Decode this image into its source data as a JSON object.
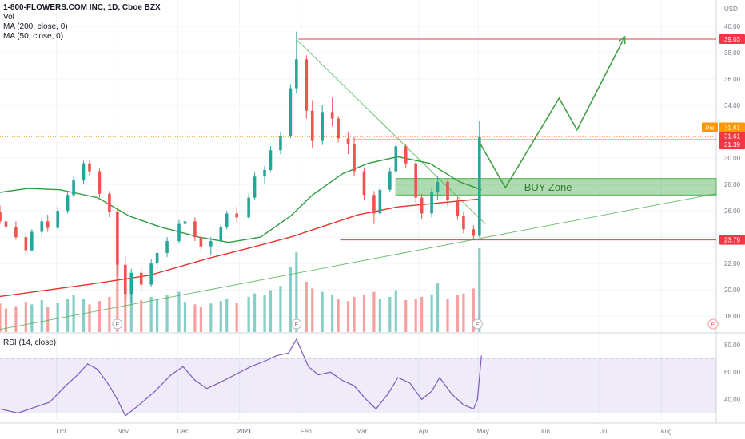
{
  "header": {
    "symbol_line": "1-800-FLOWERS.COM INC, 1D, Cboe BZX",
    "indicators": [
      "Vol",
      "MA (200, close, 0)",
      "MA (50, close, 0)"
    ],
    "currency": "USD"
  },
  "rsi_panel": {
    "title": "RSI (14, close)"
  },
  "chart_data": {
    "type": "candlestick",
    "title": "1-800-FLOWERS.COM INC, 1D, Cboe BZX",
    "x_ticks": [
      "Oct",
      "Nov",
      "Dec",
      "2021",
      "Feb",
      "Mar",
      "Apr",
      "May",
      "Jun",
      "Jul",
      "Aug"
    ],
    "y_ticks": [
      "40.00",
      "38.00",
      "36.00",
      "34.00",
      "32.00",
      "30.00",
      "28.00",
      "26.00",
      "24.00",
      "22.00",
      "20.00",
      "18.00"
    ],
    "ylim": [
      16.8,
      42.0
    ],
    "rsi_ticks": [
      "80.00",
      "60.00",
      "40.00"
    ],
    "rsi_ylim": [
      25,
      87
    ],
    "price_labels": [
      {
        "text": "39.03",
        "value": 39.03,
        "color": "#f23645"
      },
      {
        "text": "31.61",
        "value": 31.61,
        "color": "#f23645"
      },
      {
        "text": "31.39",
        "value": 31.39,
        "color": "#f23645"
      },
      {
        "text": "23.79",
        "value": 23.79,
        "color": "#f23645"
      }
    ],
    "pre_label": {
      "tag": "Pre",
      "text": "31.61",
      "value": 31.61,
      "color": "#ff9800"
    },
    "horizontal_lines": [
      {
        "value": 39.03,
        "start": "2021-01-29"
      },
      {
        "value": 31.39,
        "start": "2021-02-25"
      },
      {
        "value": 23.79,
        "start": "2021-02-19"
      }
    ],
    "buy_zone": {
      "label": "BUY Zone",
      "low": 27.2,
      "high": 28.45,
      "start": "2021-03-19",
      "end": "2021-08-27"
    },
    "projection_path": [
      {
        "date": "2021-04-30",
        "price": 31.2
      },
      {
        "date": "2021-05-13",
        "price": 27.75
      },
      {
        "date": "2021-06-09",
        "price": 34.55
      },
      {
        "date": "2021-06-18",
        "price": 32.15
      },
      {
        "date": "2021-07-12",
        "price": 39.2
      }
    ],
    "trendlines": [
      {
        "from": {
          "date": "2020-09-01",
          "price": 17.0
        },
        "to": {
          "date": "2021-08-27",
          "price": 27.3
        }
      },
      {
        "from": {
          "date": "2021-01-28",
          "price": 39.0
        },
        "to": {
          "date": "2021-05-03",
          "price": 25.0
        }
      }
    ],
    "earnings_markers": [
      "2020-10-30",
      "2021-01-28",
      "2021-04-29",
      "2021-08-27"
    ],
    "earnings_glyph": "E",
    "series": [
      {
        "name": "MA (200, close, 0)",
        "color": "#e8322a",
        "points": [
          [
            "2020-09-01",
            19.5
          ],
          [
            "2020-10-15",
            20.4
          ],
          [
            "2020-11-15",
            21.1
          ],
          [
            "2020-12-15",
            22.4
          ],
          [
            "2021-01-05",
            23.2
          ],
          [
            "2021-01-25",
            24.0
          ],
          [
            "2021-02-10",
            24.8
          ],
          [
            "2021-02-28",
            25.7
          ],
          [
            "2021-03-20",
            26.3
          ],
          [
            "2021-04-10",
            26.6
          ],
          [
            "2021-04-30",
            26.9
          ]
        ]
      },
      {
        "name": "MA (50, close, 0)",
        "color": "#2e9e3e",
        "points": [
          [
            "2020-09-01",
            27.4
          ],
          [
            "2020-09-15",
            27.7
          ],
          [
            "2020-10-01",
            27.6
          ],
          [
            "2020-10-20",
            27.0
          ],
          [
            "2020-11-05",
            25.6
          ],
          [
            "2020-11-20",
            24.8
          ],
          [
            "2020-12-10",
            24.0
          ],
          [
            "2020-12-25",
            23.6
          ],
          [
            "2021-01-10",
            24.0
          ],
          [
            "2021-01-25",
            25.6
          ],
          [
            "2021-02-05",
            27.2
          ],
          [
            "2021-02-20",
            28.8
          ],
          [
            "2021-03-05",
            29.6
          ],
          [
            "2021-03-20",
            30.1
          ],
          [
            "2021-04-05",
            29.6
          ],
          [
            "2021-04-20",
            28.2
          ],
          [
            "2021-05-01",
            27.6
          ]
        ]
      }
    ],
    "candles": [
      [
        "2020-09-01",
        25.9,
        26.4,
        25.0,
        25.2
      ],
      [
        "2020-09-04",
        25.2,
        25.6,
        24.4,
        24.8
      ],
      [
        "2020-09-09",
        24.8,
        25.2,
        23.8,
        24.0
      ],
      [
        "2020-09-14",
        24.0,
        24.4,
        22.7,
        23.0
      ],
      [
        "2020-09-17",
        23.0,
        24.6,
        22.9,
        24.4
      ],
      [
        "2020-09-22",
        24.4,
        25.5,
        24.0,
        25.2
      ],
      [
        "2020-09-25",
        25.2,
        25.7,
        24.4,
        24.7
      ],
      [
        "2020-09-30",
        24.7,
        26.3,
        24.6,
        26.0
      ],
      [
        "2020-10-05",
        26.0,
        27.4,
        25.8,
        27.2
      ],
      [
        "2020-10-08",
        27.2,
        28.6,
        27.0,
        28.3
      ],
      [
        "2020-10-13",
        28.3,
        29.8,
        28.0,
        29.6
      ],
      [
        "2020-10-16",
        29.6,
        29.9,
        28.7,
        29.0
      ],
      [
        "2020-10-21",
        29.0,
        29.2,
        27.0,
        27.3
      ],
      [
        "2020-10-26",
        27.3,
        27.5,
        25.5,
        25.9
      ],
      [
        "2020-10-30",
        25.9,
        26.1,
        21.0,
        21.9
      ],
      [
        "2020-11-03",
        21.9,
        22.5,
        19.2,
        19.7
      ],
      [
        "2020-11-06",
        19.7,
        21.6,
        19.0,
        21.3
      ],
      [
        "2020-11-11",
        21.3,
        21.7,
        20.0,
        20.4
      ],
      [
        "2020-11-16",
        20.4,
        22.3,
        20.2,
        22.0
      ],
      [
        "2020-11-19",
        22.0,
        23.1,
        21.6,
        22.8
      ],
      [
        "2020-11-24",
        22.8,
        24.0,
        22.5,
        23.7
      ],
      [
        "2020-11-30",
        23.7,
        25.3,
        23.5,
        25.0
      ],
      [
        "2020-12-03",
        25.0,
        25.9,
        24.5,
        25.2
      ],
      [
        "2020-12-08",
        25.2,
        25.5,
        23.7,
        24.0
      ],
      [
        "2020-12-11",
        24.0,
        24.2,
        22.9,
        23.3
      ],
      [
        "2020-12-16",
        23.3,
        24.0,
        22.6,
        23.7
      ],
      [
        "2020-12-21",
        23.7,
        25.0,
        23.5,
        24.8
      ],
      [
        "2020-12-24",
        24.8,
        26.0,
        24.6,
        25.8
      ],
      [
        "2020-12-29",
        25.8,
        26.3,
        25.1,
        25.5
      ],
      [
        "2021-01-04",
        25.5,
        27.3,
        25.4,
        27.0
      ],
      [
        "2021-01-07",
        27.0,
        28.9,
        26.8,
        28.6
      ],
      [
        "2021-01-12",
        28.6,
        29.4,
        28.0,
        29.1
      ],
      [
        "2021-01-15",
        29.1,
        30.9,
        29.0,
        30.6
      ],
      [
        "2021-01-20",
        30.6,
        32.0,
        30.3,
        31.7
      ],
      [
        "2021-01-25",
        31.7,
        35.6,
        31.5,
        35.3
      ],
      [
        "2021-01-28",
        35.3,
        39.6,
        34.9,
        37.5
      ],
      [
        "2021-02-02",
        37.5,
        37.8,
        33.0,
        33.6
      ],
      [
        "2021-02-05",
        33.6,
        34.4,
        30.8,
        31.3
      ],
      [
        "2021-02-10",
        31.3,
        34.0,
        31.0,
        33.5
      ],
      [
        "2021-02-15",
        33.5,
        34.6,
        32.4,
        33.0
      ],
      [
        "2021-02-18",
        33.0,
        33.2,
        31.2,
        31.5
      ],
      [
        "2021-02-23",
        31.5,
        32.0,
        30.3,
        31.1
      ],
      [
        "2021-02-26",
        31.1,
        31.6,
        28.6,
        29.0
      ],
      [
        "2021-03-03",
        29.0,
        29.3,
        26.8,
        27.2
      ],
      [
        "2021-03-08",
        27.2,
        27.5,
        25.0,
        25.8
      ],
      [
        "2021-03-11",
        25.8,
        28.0,
        25.6,
        27.6
      ],
      [
        "2021-03-16",
        27.6,
        29.3,
        27.4,
        29.0
      ],
      [
        "2021-03-19",
        29.0,
        31.2,
        28.8,
        30.9
      ],
      [
        "2021-03-24",
        30.9,
        31.1,
        29.2,
        29.6
      ],
      [
        "2021-03-29",
        29.6,
        29.8,
        26.6,
        27.0
      ],
      [
        "2021-04-01",
        27.0,
        27.3,
        25.4,
        25.8
      ],
      [
        "2021-04-06",
        25.8,
        27.8,
        25.5,
        27.4
      ],
      [
        "2021-04-09",
        27.4,
        28.6,
        26.8,
        28.2
      ],
      [
        "2021-04-14",
        28.2,
        28.4,
        26.4,
        26.8
      ],
      [
        "2021-04-19",
        26.8,
        27.0,
        25.3,
        25.6
      ],
      [
        "2021-04-22",
        25.6,
        25.9,
        24.3,
        24.6
      ],
      [
        "2021-04-27",
        24.6,
        24.9,
        23.8,
        24.1
      ],
      [
        "2021-04-30",
        24.1,
        32.8,
        24.0,
        31.6
      ]
    ],
    "volume": [
      [
        "2020-09-01",
        0.34,
        "down"
      ],
      [
        "2020-09-04",
        0.28,
        "down"
      ],
      [
        "2020-09-09",
        0.31,
        "down"
      ],
      [
        "2020-09-14",
        0.36,
        "down"
      ],
      [
        "2020-09-17",
        0.33,
        "up"
      ],
      [
        "2020-09-22",
        0.38,
        "up"
      ],
      [
        "2020-09-25",
        0.3,
        "down"
      ],
      [
        "2020-09-30",
        0.35,
        "up"
      ],
      [
        "2020-10-05",
        0.4,
        "up"
      ],
      [
        "2020-10-08",
        0.44,
        "up"
      ],
      [
        "2020-10-13",
        0.39,
        "up"
      ],
      [
        "2020-10-16",
        0.33,
        "down"
      ],
      [
        "2020-10-21",
        0.37,
        "down"
      ],
      [
        "2020-10-26",
        0.42,
        "down"
      ],
      [
        "2020-10-30",
        0.8,
        "down"
      ],
      [
        "2020-11-03",
        0.55,
        "down"
      ],
      [
        "2020-11-06",
        0.5,
        "up"
      ],
      [
        "2020-11-11",
        0.38,
        "down"
      ],
      [
        "2020-11-16",
        0.42,
        "up"
      ],
      [
        "2020-11-19",
        0.4,
        "up"
      ],
      [
        "2020-11-24",
        0.44,
        "up"
      ],
      [
        "2020-11-30",
        0.48,
        "up"
      ],
      [
        "2020-12-03",
        0.36,
        "up"
      ],
      [
        "2020-12-08",
        0.33,
        "down"
      ],
      [
        "2020-12-11",
        0.3,
        "down"
      ],
      [
        "2020-12-16",
        0.34,
        "up"
      ],
      [
        "2020-12-21",
        0.37,
        "up"
      ],
      [
        "2020-12-24",
        0.4,
        "up"
      ],
      [
        "2020-12-29",
        0.35,
        "down"
      ],
      [
        "2021-01-04",
        0.42,
        "up"
      ],
      [
        "2021-01-07",
        0.46,
        "up"
      ],
      [
        "2021-01-12",
        0.44,
        "up"
      ],
      [
        "2021-01-15",
        0.5,
        "up"
      ],
      [
        "2021-01-20",
        0.55,
        "up"
      ],
      [
        "2021-01-25",
        0.78,
        "up"
      ],
      [
        "2021-01-28",
        0.95,
        "up"
      ],
      [
        "2021-02-02",
        0.6,
        "down"
      ],
      [
        "2021-02-05",
        0.52,
        "down"
      ],
      [
        "2021-02-10",
        0.48,
        "up"
      ],
      [
        "2021-02-15",
        0.44,
        "up"
      ],
      [
        "2021-02-18",
        0.4,
        "down"
      ],
      [
        "2021-02-23",
        0.37,
        "down"
      ],
      [
        "2021-02-26",
        0.42,
        "down"
      ],
      [
        "2021-03-03",
        0.45,
        "down"
      ],
      [
        "2021-03-08",
        0.48,
        "down"
      ],
      [
        "2021-03-11",
        0.4,
        "up"
      ],
      [
        "2021-03-16",
        0.42,
        "up"
      ],
      [
        "2021-03-19",
        0.5,
        "up"
      ],
      [
        "2021-03-24",
        0.38,
        "down"
      ],
      [
        "2021-03-29",
        0.4,
        "down"
      ],
      [
        "2021-04-01",
        0.42,
        "down"
      ],
      [
        "2021-04-06",
        0.45,
        "up"
      ],
      [
        "2021-04-09",
        0.58,
        "up"
      ],
      [
        "2021-04-14",
        0.4,
        "down"
      ],
      [
        "2021-04-19",
        0.44,
        "down"
      ],
      [
        "2021-04-22",
        0.46,
        "down"
      ],
      [
        "2021-04-27",
        0.52,
        "down"
      ],
      [
        "2021-04-30",
        1.0,
        "up"
      ]
    ],
    "rsi": [
      [
        "2020-09-01",
        33
      ],
      [
        "2020-09-10",
        30
      ],
      [
        "2020-09-18",
        34
      ],
      [
        "2020-09-26",
        38
      ],
      [
        "2020-10-04",
        50
      ],
      [
        "2020-10-10",
        58
      ],
      [
        "2020-10-15",
        66
      ],
      [
        "2020-10-20",
        62
      ],
      [
        "2020-10-26",
        50
      ],
      [
        "2020-10-30",
        40
      ],
      [
        "2020-11-03",
        28
      ],
      [
        "2020-11-10",
        36
      ],
      [
        "2020-11-18",
        46
      ],
      [
        "2020-11-26",
        58
      ],
      [
        "2020-12-02",
        64
      ],
      [
        "2020-12-08",
        54
      ],
      [
        "2020-12-14",
        48
      ],
      [
        "2020-12-20",
        52
      ],
      [
        "2020-12-28",
        58
      ],
      [
        "2021-01-05",
        64
      ],
      [
        "2021-01-12",
        68
      ],
      [
        "2021-01-18",
        72
      ],
      [
        "2021-01-24",
        74
      ],
      [
        "2021-01-28",
        84
      ],
      [
        "2021-02-03",
        64
      ],
      [
        "2021-02-08",
        58
      ],
      [
        "2021-02-14",
        60
      ],
      [
        "2021-02-20",
        54
      ],
      [
        "2021-02-26",
        50
      ],
      [
        "2021-03-04",
        40
      ],
      [
        "2021-03-09",
        33
      ],
      [
        "2021-03-15",
        44
      ],
      [
        "2021-03-20",
        56
      ],
      [
        "2021-03-26",
        52
      ],
      [
        "2021-04-01",
        40
      ],
      [
        "2021-04-06",
        46
      ],
      [
        "2021-04-10",
        56
      ],
      [
        "2021-04-16",
        44
      ],
      [
        "2021-04-22",
        36
      ],
      [
        "2021-04-27",
        33
      ],
      [
        "2021-04-29",
        40
      ],
      [
        "2021-05-01",
        72
      ]
    ]
  }
}
